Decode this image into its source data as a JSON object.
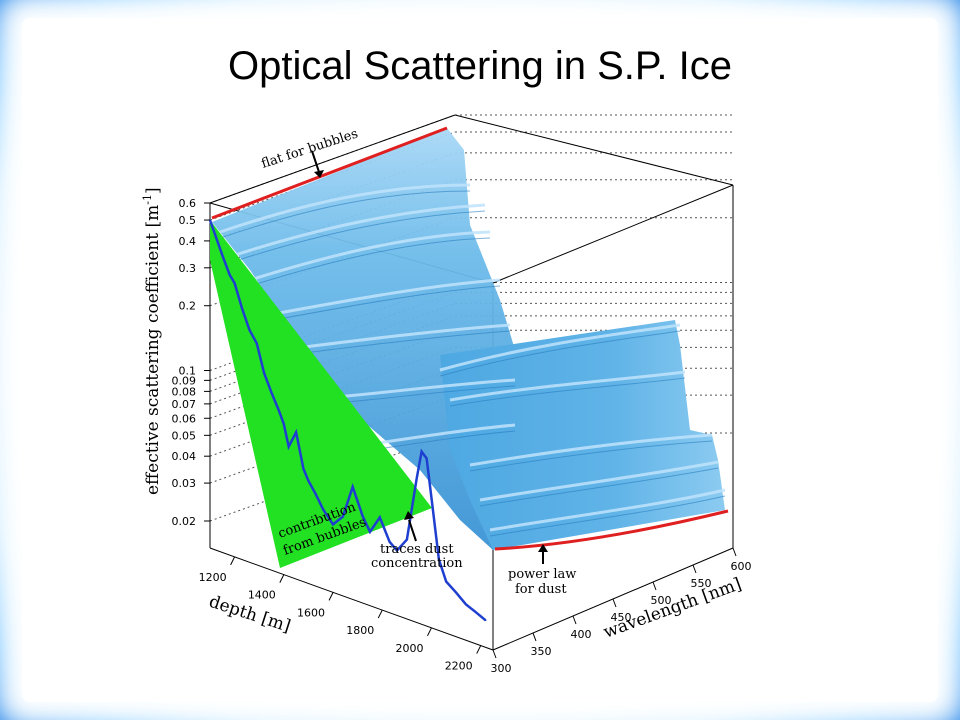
{
  "title": "Optical Scattering in S.P. Ice",
  "chart_data": {
    "type": "surface3d",
    "title": "Optical Scattering in S.P. Ice",
    "zlabel": "effective scattering coefficient [m⁻¹]",
    "zlabel_main": "effective scattering coefficient [m",
    "zlabel_exp": "-1",
    "zlabel_close": "]",
    "xlabel": "depth [m]",
    "ylabel": "wavelength [nm]",
    "z_scale": "log",
    "z_ticks": [
      "0.6",
      "0.5",
      "0.4",
      "0.3",
      "0.2",
      "0.1",
      "0.09",
      "0.08",
      "0.07",
      "0.06",
      "0.05",
      "0.04",
      "0.03",
      "0.02"
    ],
    "z_tick_values": [
      0.6,
      0.5,
      0.4,
      0.3,
      0.2,
      0.1,
      0.09,
      0.08,
      0.07,
      0.06,
      0.05,
      0.04,
      0.03,
      0.02
    ],
    "depth_ticks": [
      "1200",
      "1400",
      "1600",
      "1800",
      "2000",
      "2200"
    ],
    "depth_tick_values": [
      1200,
      1400,
      1600,
      1800,
      2000,
      2200
    ],
    "wavelength_ticks": [
      "300",
      "350",
      "400",
      "450",
      "500",
      "550",
      "600"
    ],
    "wavelength_tick_values": [
      300,
      350,
      400,
      450,
      500,
      550,
      600
    ],
    "depth_profile_at_300nm": [
      {
        "x": 1100,
        "y": 0.5
      },
      {
        "x": 1150,
        "y": 0.36
      },
      {
        "x": 1180,
        "y": 0.3
      },
      {
        "x": 1200,
        "y": 0.28
      },
      {
        "x": 1230,
        "y": 0.22
      },
      {
        "x": 1260,
        "y": 0.18
      },
      {
        "x": 1290,
        "y": 0.16
      },
      {
        "x": 1320,
        "y": 0.12
      },
      {
        "x": 1350,
        "y": 0.1
      },
      {
        "x": 1380,
        "y": 0.085
      },
      {
        "x": 1400,
        "y": 0.075
      },
      {
        "x": 1420,
        "y": 0.06
      },
      {
        "x": 1450,
        "y": 0.072
      },
      {
        "x": 1480,
        "y": 0.05
      },
      {
        "x": 1500,
        "y": 0.045
      },
      {
        "x": 1530,
        "y": 0.04
      },
      {
        "x": 1560,
        "y": 0.035
      },
      {
        "x": 1600,
        "y": 0.031
      },
      {
        "x": 1640,
        "y": 0.035
      },
      {
        "x": 1680,
        "y": 0.05
      },
      {
        "x": 1720,
        "y": 0.038
      },
      {
        "x": 1750,
        "y": 0.033
      },
      {
        "x": 1790,
        "y": 0.04
      },
      {
        "x": 1830,
        "y": 0.032
      },
      {
        "x": 1860,
        "y": 0.03
      },
      {
        "x": 1900,
        "y": 0.035
      },
      {
        "x": 1940,
        "y": 0.07
      },
      {
        "x": 1960,
        "y": 0.095
      },
      {
        "x": 1980,
        "y": 0.09
      },
      {
        "x": 2000,
        "y": 0.06
      },
      {
        "x": 2030,
        "y": 0.032
      },
      {
        "x": 2060,
        "y": 0.026
      },
      {
        "x": 2100,
        "y": 0.024
      },
      {
        "x": 2140,
        "y": 0.022
      },
      {
        "x": 2180,
        "y": 0.021
      },
      {
        "x": 2220,
        "y": 0.02
      }
    ],
    "series": [
      {
        "name": "contribution from bubbles",
        "color": "#22e022"
      },
      {
        "name": "traces dust concentration",
        "color": "#1f3fd0"
      }
    ],
    "colors": {
      "surface_light": "#8ec9f0",
      "surface_mid": "#4aa6df",
      "surface_dark": "#2b7fbf",
      "bubbles": "#22e022",
      "profile": "#1f3fd0",
      "fit": "#e02020"
    },
    "annotations": [
      {
        "name": "flat-bubbles",
        "text": "flat for bubbles"
      },
      {
        "name": "traces-dust-1",
        "text": "traces dust"
      },
      {
        "name": "traces-dust-2",
        "text": "concentration"
      },
      {
        "name": "power-law-1",
        "text": "power law"
      },
      {
        "name": "power-law-2",
        "text": "for dust"
      },
      {
        "name": "bubbles-1",
        "text": "contribution"
      },
      {
        "name": "bubbles-2",
        "text": "from bubbles"
      }
    ]
  }
}
